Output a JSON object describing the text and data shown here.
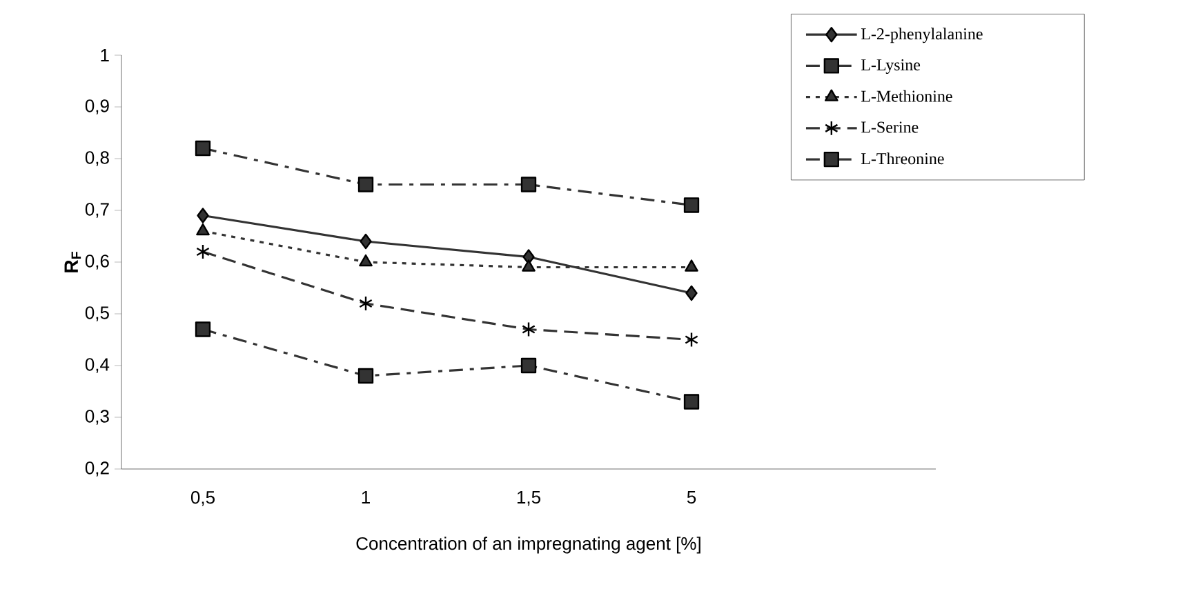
{
  "chart_data": {
    "type": "line",
    "xlabel": "Concentration of an impregnating agent [%]",
    "ylabel": "R$_{F}$",
    "categories": [
      "0,5",
      "1",
      "1,5",
      "5",
      null
    ],
    "series": [
      {
        "name": "L-2-phenylalanine",
        "color": "#333333",
        "marker": "diamond",
        "line_style": "solid",
        "values": [
          0.69,
          0.64,
          0.61,
          0.54,
          null
        ]
      },
      {
        "name": "L-Lysine",
        "color": "#333333",
        "marker": "square",
        "line_style": "dashdot",
        "values": [
          0.82,
          0.75,
          0.75,
          0.71,
          null
        ]
      },
      {
        "name": "L-Methionine",
        "color": "#333333",
        "marker": "triangle",
        "line_style": "dotted",
        "values": [
          0.66,
          0.6,
          0.59,
          0.59,
          null
        ]
      },
      {
        "name": "L-Serine",
        "color": "#333333",
        "marker": "cross",
        "line_style": "dashed",
        "values": [
          0.62,
          0.52,
          0.47,
          0.45,
          null
        ]
      },
      {
        "name": "L-Threonine",
        "color": "#333333",
        "marker": "square",
        "line_style": "dashdot",
        "values": [
          0.47,
          0.38,
          0.4,
          0.33,
          null
        ]
      }
    ],
    "ylim": [
      0.2,
      1
    ],
    "yticks": [
      {
        "value": 0.2,
        "label": "0,2"
      },
      {
        "value": 0.3,
        "label": "0,3"
      },
      {
        "value": 0.4,
        "label": "0,4"
      },
      {
        "value": 0.5,
        "label": "0,5"
      },
      {
        "value": 0.6,
        "label": "0,6"
      },
      {
        "value": 0.7,
        "label": "0,7"
      },
      {
        "value": 0.8,
        "label": "0,8"
      },
      {
        "value": 0.9,
        "label": "0,9"
      },
      1
    ],
    "grid": false,
    "legend": "top right"
  }
}
